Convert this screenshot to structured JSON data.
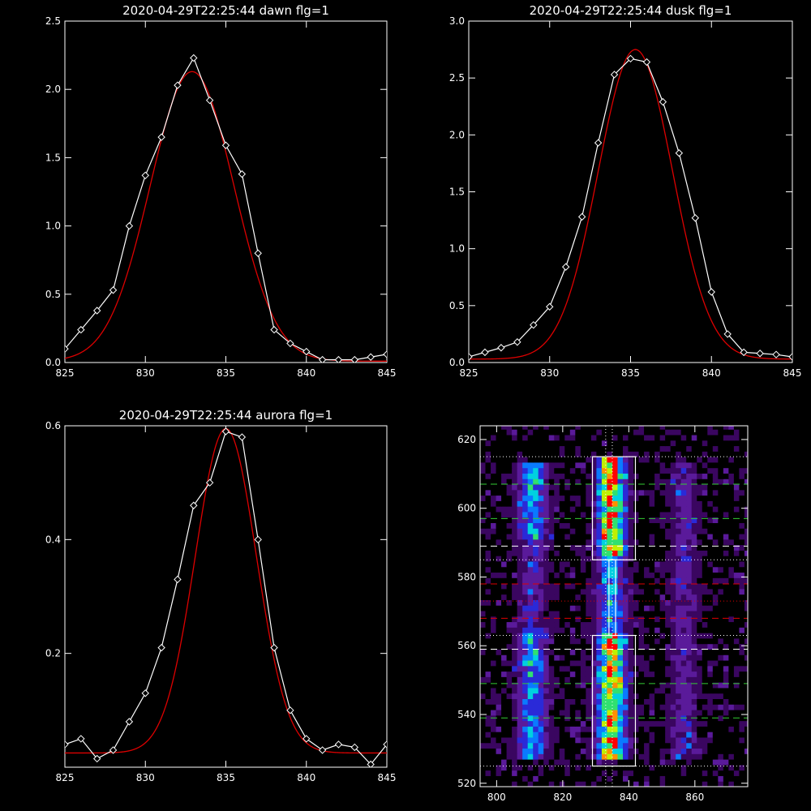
{
  "chart_data": [
    {
      "type": "line",
      "title": "2020-04-29T22:25:44 dawn flg=1",
      "xlim": [
        825,
        845
      ],
      "ylim": [
        0,
        2.5
      ],
      "xticks": [
        825,
        830,
        835,
        840,
        845
      ],
      "yticks": [
        0.0,
        0.5,
        1.0,
        1.5,
        2.0,
        2.5
      ],
      "xtick_labels": [
        "825",
        "830",
        "835",
        "840",
        "845"
      ],
      "ytick_labels": [
        "0.0",
        "0.5",
        "1.0",
        "1.5",
        "2.0",
        "2.5"
      ],
      "colors": {
        "data": "#ffffff",
        "fit": "#dd0000"
      },
      "series": [
        {
          "marker": "diamond",
          "x": [
            825,
            826,
            827,
            828,
            829,
            830,
            831,
            832,
            833,
            834,
            835,
            836,
            837,
            838,
            839,
            840,
            841,
            842,
            843,
            844,
            845
          ],
          "y": [
            0.1,
            0.24,
            0.38,
            0.53,
            1.0,
            1.37,
            1.65,
            2.03,
            2.23,
            1.92,
            1.59,
            1.38,
            0.8,
            0.24,
            0.14,
            0.08,
            0.02,
            0.02,
            0.02,
            0.04,
            0.06
          ]
        }
      ],
      "fit": {
        "model": "gaussian",
        "amplitude": 2.12,
        "center": 832.9,
        "sigma": 2.6,
        "offset": 0.01
      }
    },
    {
      "type": "line",
      "title": "2020-04-29T22:25:44 dusk flg=1",
      "xlim": [
        825,
        845
      ],
      "ylim": [
        0,
        3.0
      ],
      "xticks": [
        825,
        830,
        835,
        840,
        845
      ],
      "yticks": [
        0.0,
        0.5,
        1.0,
        1.5,
        2.0,
        2.5,
        3.0
      ],
      "xtick_labels": [
        "825",
        "830",
        "835",
        "840",
        "845"
      ],
      "ytick_labels": [
        "0.0",
        "0.5",
        "1.0",
        "1.5",
        "2.0",
        "2.5",
        "3.0"
      ],
      "colors": {
        "data": "#ffffff",
        "fit": "#dd0000"
      },
      "series": [
        {
          "marker": "diamond",
          "x": [
            825,
            826,
            827,
            828,
            829,
            830,
            831,
            832,
            833,
            834,
            835,
            836,
            837,
            838,
            839,
            840,
            841,
            842,
            843,
            844,
            845
          ],
          "y": [
            0.05,
            0.09,
            0.13,
            0.18,
            0.33,
            0.49,
            0.84,
            1.28,
            1.93,
            2.53,
            2.67,
            2.64,
            2.29,
            1.84,
            1.27,
            0.62,
            0.25,
            0.09,
            0.08,
            0.07,
            0.05
          ]
        }
      ],
      "fit": {
        "model": "gaussian",
        "amplitude": 2.72,
        "center": 835.3,
        "sigma": 2.3,
        "offset": 0.03
      }
    },
    {
      "type": "line",
      "title": "2020-04-29T22:25:44 aurora flg=1",
      "xlim": [
        825,
        845
      ],
      "ylim": [
        0,
        0.6
      ],
      "xticks": [
        825,
        830,
        835,
        840,
        845
      ],
      "yticks": [
        0.2,
        0.4,
        0.6
      ],
      "xtick_labels": [
        "825",
        "830",
        "835",
        "840",
        "845"
      ],
      "ytick_labels": [
        "0.2",
        "0.4",
        "0.6"
      ],
      "colors": {
        "data": "#ffffff",
        "fit": "#dd0000"
      },
      "series": [
        {
          "marker": "diamond",
          "x": [
            825,
            826,
            827,
            828,
            829,
            830,
            831,
            832,
            833,
            834,
            835,
            836,
            837,
            838,
            839,
            840,
            841,
            842,
            843,
            844,
            845
          ],
          "y": [
            0.04,
            0.05,
            0.015,
            0.03,
            0.08,
            0.13,
            0.21,
            0.33,
            0.46,
            0.5,
            0.59,
            0.58,
            0.4,
            0.21,
            0.1,
            0.05,
            0.03,
            0.04,
            0.035,
            0.005,
            0.04
          ]
        }
      ],
      "fit": {
        "model": "gaussian",
        "amplitude": 0.57,
        "center": 835.0,
        "sigma": 1.9,
        "offset": 0.025
      }
    },
    {
      "type": "heatmap",
      "xlim": [
        795,
        876
      ],
      "ylim": [
        519,
        624
      ],
      "xticks": [
        800,
        820,
        840,
        860
      ],
      "yticks": [
        520,
        540,
        560,
        580,
        600,
        620
      ],
      "xtick_labels": [
        "800",
        "820",
        "840",
        "860"
      ],
      "ytick_labels": [
        "520",
        "540",
        "560",
        "580",
        "600",
        "620"
      ],
      "colormap": [
        "#000000",
        "#3a0660",
        "#5a1a9a",
        "#2a2ad8",
        "#0a7aff",
        "#00d0e0",
        "#30e070",
        "#c0f000",
        "#ff9000",
        "#ff0000"
      ],
      "emission_bands": [
        {
          "center": 810,
          "width": 5,
          "y": [
            527,
            612
          ],
          "intensity": 0.55
        },
        {
          "center": 834,
          "width": 5,
          "y": [
            527,
            614
          ],
          "intensity": 0.95
        },
        {
          "center": 856,
          "width": 5,
          "y": [
            527,
            612
          ],
          "intensity": 0.22
        }
      ],
      "overlay": {
        "boxes": [
          {
            "x": [
              829,
              842
            ],
            "y": [
              585,
              615
            ],
            "color": "#ffffff"
          },
          {
            "x": [
              829,
              842
            ],
            "y": [
              525,
              563
            ],
            "color": "#ffffff"
          },
          {
            "x": [
              834,
              836
            ],
            "y": [
              563,
              585
            ],
            "color": "#ffffff"
          }
        ],
        "vlines": [
          {
            "x": 833,
            "style": "dotted",
            "color": "#ffffff"
          },
          {
            "x": 835,
            "style": "dotted",
            "color": "#ffffff"
          }
        ],
        "hlines": [
          {
            "y": 615,
            "style": "dotted",
            "color": "#ffffff"
          },
          {
            "y": 607,
            "style": "dashed",
            "color": "#33cc33"
          },
          {
            "y": 597,
            "style": "dashed",
            "color": "#33cc33"
          },
          {
            "y": 589,
            "style": "dashed",
            "color": "#ffffff"
          },
          {
            "y": 585,
            "style": "dotted",
            "color": "#ffffff"
          },
          {
            "y": 578,
            "style": "dashed",
            "color": "#dd0000"
          },
          {
            "y": 573,
            "style": "dotted",
            "color": "#dd0000"
          },
          {
            "y": 568,
            "style": "dashed",
            "color": "#dd0000"
          },
          {
            "y": 563,
            "style": "dotted",
            "color": "#ffffff"
          },
          {
            "y": 559,
            "style": "dashed",
            "color": "#ffffff"
          },
          {
            "y": 549,
            "style": "dashed",
            "color": "#33cc33"
          },
          {
            "y": 539,
            "style": "dashed",
            "color": "#33cc33"
          },
          {
            "y": 525,
            "style": "dotted",
            "color": "#ffffff"
          }
        ]
      }
    }
  ]
}
